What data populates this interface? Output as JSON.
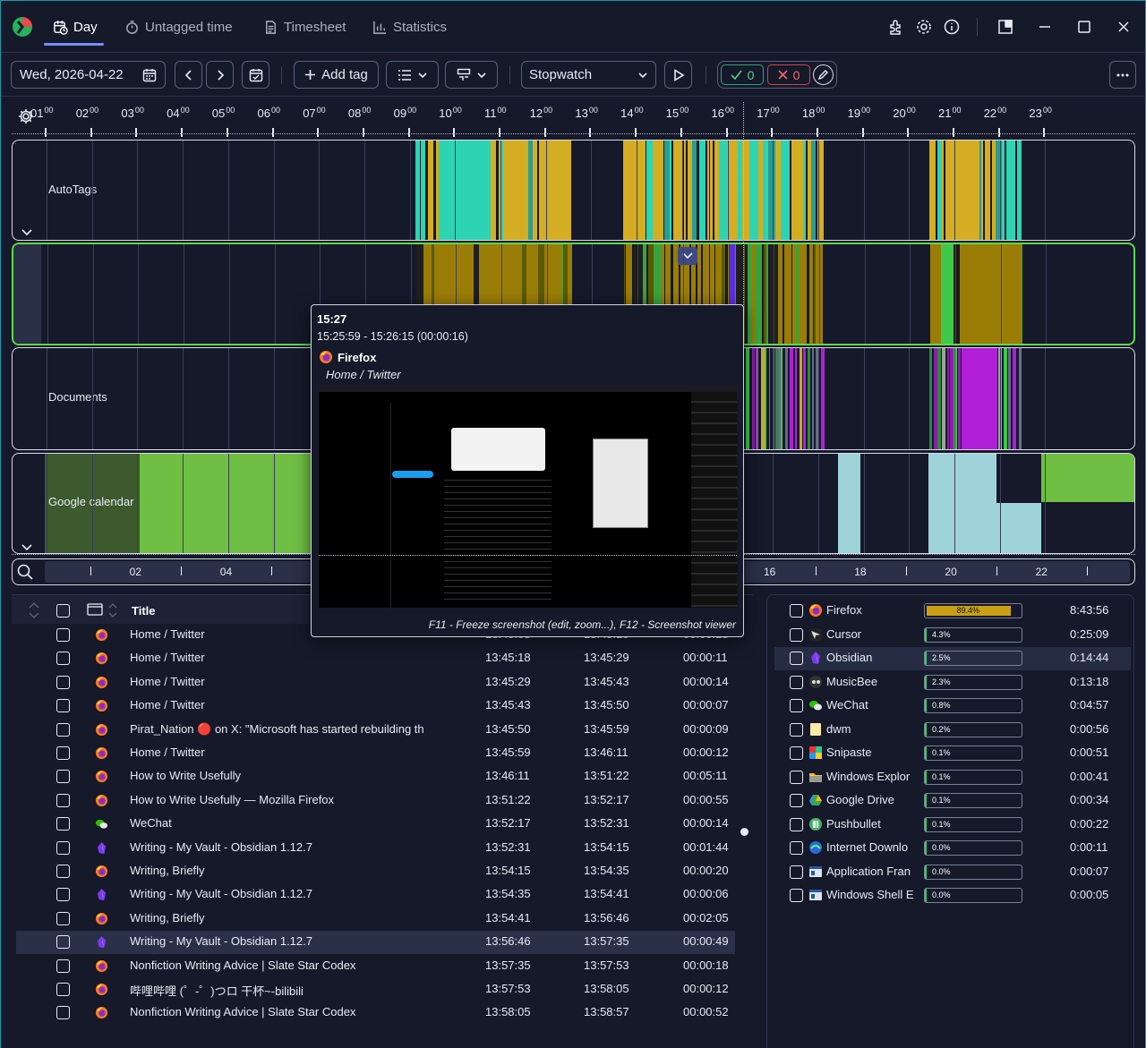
{
  "nav": {
    "tabs": [
      {
        "label": "Day"
      },
      {
        "label": "Untagged time"
      },
      {
        "label": "Timesheet"
      },
      {
        "label": "Statistics"
      }
    ]
  },
  "toolbar": {
    "date": "Wed, 2026-04-22",
    "add_tag": "Add tag",
    "timer_mode": "Stopwatch",
    "accepted_count": "0",
    "rejected_count": "0"
  },
  "timeline": {
    "hours": [
      "01",
      "02",
      "03",
      "04",
      "05",
      "06",
      "07",
      "08",
      "09",
      "10",
      "11",
      "12",
      "13",
      "14",
      "15",
      "16",
      "17",
      "18",
      "19",
      "20",
      "21",
      "22",
      "23"
    ],
    "hour_suffix": "00",
    "lanes": [
      "AutoTags",
      "",
      "Documents",
      "Google calendar"
    ],
    "scale_labels": [
      "02",
      "04",
      "16",
      "18",
      "20",
      "22"
    ]
  },
  "popup": {
    "time": "15:27",
    "range": "15:25:59 - 15:26:15 (00:00:16)",
    "app": "Firefox",
    "title": "Home / Twitter",
    "hint": "F11 - Freeze screenshot (edit, zoom...), F12 - Screenshot viewer"
  },
  "table": {
    "header_title": "Title",
    "rows": [
      {
        "icon": "firefox",
        "title": "Home / Twitter",
        "start": "13:45:05",
        "end": "13:45:18",
        "dur": "00:00:13"
      },
      {
        "icon": "firefox",
        "title": "Home / Twitter",
        "start": "13:45:18",
        "end": "13:45:29",
        "dur": "00:00:11"
      },
      {
        "icon": "firefox",
        "title": "Home / Twitter",
        "start": "13:45:29",
        "end": "13:45:43",
        "dur": "00:00:14"
      },
      {
        "icon": "firefox",
        "title": "Home / Twitter",
        "start": "13:45:43",
        "end": "13:45:50",
        "dur": "00:00:07"
      },
      {
        "icon": "firefox",
        "title": "Pirat_Nation 🔴 on X: \"Microsoft has started rebuilding th",
        "start": "13:45:50",
        "end": "13:45:59",
        "dur": "00:00:09"
      },
      {
        "icon": "firefox",
        "title": "Home / Twitter",
        "start": "13:45:59",
        "end": "13:46:11",
        "dur": "00:00:12"
      },
      {
        "icon": "firefox",
        "title": "How to Write Usefully",
        "start": "13:46:11",
        "end": "13:51:22",
        "dur": "00:05:11"
      },
      {
        "icon": "firefox",
        "title": "How to Write Usefully — Mozilla Firefox",
        "start": "13:51:22",
        "end": "13:52:17",
        "dur": "00:00:55"
      },
      {
        "icon": "wechat",
        "title": "WeChat",
        "start": "13:52:17",
        "end": "13:52:31",
        "dur": "00:00:14"
      },
      {
        "icon": "obsidian",
        "title": "Writing - My Vault - Obsidian 1.12.7",
        "start": "13:52:31",
        "end": "13:54:15",
        "dur": "00:01:44"
      },
      {
        "icon": "firefox",
        "title": "Writing, Briefly",
        "start": "13:54:15",
        "end": "13:54:35",
        "dur": "00:00:20"
      },
      {
        "icon": "obsidian",
        "title": "Writing - My Vault - Obsidian 1.12.7",
        "start": "13:54:35",
        "end": "13:54:41",
        "dur": "00:00:06"
      },
      {
        "icon": "firefox",
        "title": "Writing, Briefly",
        "start": "13:54:41",
        "end": "13:56:46",
        "dur": "00:02:05"
      },
      {
        "icon": "obsidian",
        "title": "Writing - My Vault - Obsidian 1.12.7",
        "start": "13:56:46",
        "end": "13:57:35",
        "dur": "00:00:49"
      },
      {
        "icon": "firefox",
        "title": "Nonfiction Writing Advice | Slate Star Codex",
        "start": "13:57:35",
        "end": "13:57:53",
        "dur": "00:00:18"
      },
      {
        "icon": "firefox",
        "title": "哔哩哔哩 (゜-゜)つロ 干杯~-bilibili",
        "start": "13:57:53",
        "end": "13:58:05",
        "dur": "00:00:12"
      },
      {
        "icon": "firefox",
        "title": "Nonfiction Writing Advice | Slate Star Codex",
        "start": "13:58:05",
        "end": "13:58:57",
        "dur": "00:00:52"
      }
    ]
  },
  "stats": {
    "rows": [
      {
        "icon": "firefox",
        "name": "Firefox",
        "pct": "89.4%",
        "value": 89.4,
        "time": "8:43:56"
      },
      {
        "icon": "cursor",
        "name": "Cursor",
        "pct": "4.3%",
        "value": 4.3,
        "time": "0:25:09"
      },
      {
        "icon": "obsidian",
        "name": "Obsidian",
        "pct": "2.5%",
        "value": 2.5,
        "time": "0:14:44"
      },
      {
        "icon": "musicbee",
        "name": "MusicBee",
        "pct": "2.3%",
        "value": 2.3,
        "time": "0:13:18"
      },
      {
        "icon": "wechat",
        "name": "WeChat",
        "pct": "0.8%",
        "value": 0.8,
        "time": "0:04:57"
      },
      {
        "icon": "dwm",
        "name": "dwm",
        "pct": "0.2%",
        "value": 0.2,
        "time": "0:00:56"
      },
      {
        "icon": "snipaste",
        "name": "Snipaste",
        "pct": "0.1%",
        "value": 0.1,
        "time": "0:00:51"
      },
      {
        "icon": "explorer",
        "name": "Windows Explor",
        "pct": "0.1%",
        "value": 0.1,
        "time": "0:00:41"
      },
      {
        "icon": "gdrive",
        "name": "Google Drive",
        "pct": "0.1%",
        "value": 0.1,
        "time": "0:00:34"
      },
      {
        "icon": "pushbullet",
        "name": "Pushbullet",
        "pct": "0.1%",
        "value": 0.1,
        "time": "0:00:22"
      },
      {
        "icon": "idm",
        "name": "Internet Downlo",
        "pct": "0.0%",
        "value": 0.0,
        "time": "0:00:11"
      },
      {
        "icon": "appframe",
        "name": "Application Fran",
        "pct": "0.0%",
        "value": 0.0,
        "time": "0:00:07"
      },
      {
        "icon": "appframe",
        "name": "Windows Shell E",
        "pct": "0.0%",
        "value": 0.0,
        "time": "0:00:05"
      }
    ]
  },
  "colors": {
    "accent": "#7b8cff",
    "autotag_gold": "#d4ad22",
    "autotag_teal": "#2dd4b4",
    "lane2_gold": "#9a7d06",
    "calendar_green": "#6fbf44",
    "calendar_dark_green": "#3c5a2e",
    "calendar_light_blue": "#9dd3d9"
  }
}
